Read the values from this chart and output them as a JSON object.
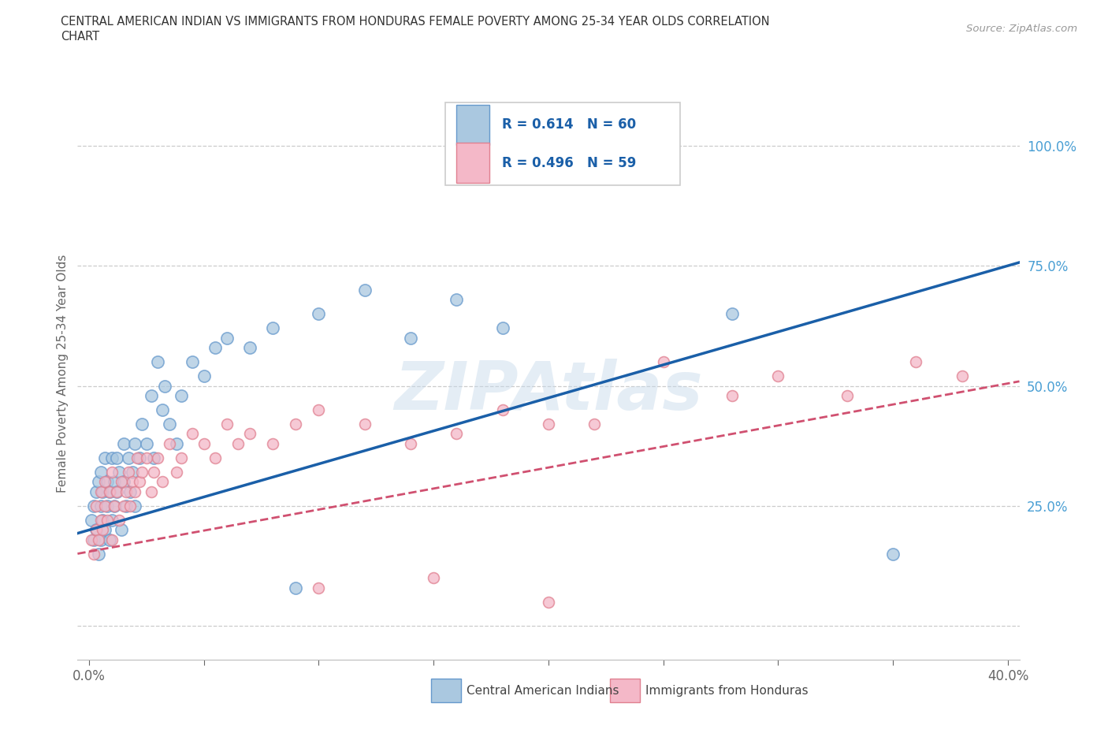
{
  "title_line1": "CENTRAL AMERICAN INDIAN VS IMMIGRANTS FROM HONDURAS FEMALE POVERTY AMONG 25-34 YEAR OLDS CORRELATION",
  "title_line2": "CHART",
  "source": "Source: ZipAtlas.com",
  "ylabel": "Female Poverty Among 25-34 Year Olds",
  "blue_face_color": "#aac8e0",
  "blue_edge_color": "#6699cc",
  "pink_face_color": "#f4b8c8",
  "pink_edge_color": "#e08090",
  "blue_line_color": "#1a5fa8",
  "pink_line_color": "#d05070",
  "R_blue": 0.614,
  "N_blue": 60,
  "R_pink": 0.496,
  "N_pink": 59,
  "watermark": "ZIPAtlas",
  "legend_label_blue": "Central American Indians",
  "legend_label_pink": "Immigrants from Honduras",
  "y_label_color": "#4a9fd4",
  "tick_label_color": "#666666",
  "grid_color": "#cccccc",
  "title_color": "#333333",
  "blue_scatter_x": [
    0.001,
    0.002,
    0.002,
    0.003,
    0.003,
    0.004,
    0.004,
    0.005,
    0.005,
    0.005,
    0.006,
    0.006,
    0.007,
    0.007,
    0.008,
    0.008,
    0.009,
    0.009,
    0.01,
    0.01,
    0.011,
    0.011,
    0.012,
    0.012,
    0.013,
    0.014,
    0.015,
    0.015,
    0.016,
    0.017,
    0.018,
    0.019,
    0.02,
    0.02,
    0.022,
    0.023,
    0.025,
    0.027,
    0.028,
    0.03,
    0.032,
    0.033,
    0.035,
    0.038,
    0.04,
    0.045,
    0.05,
    0.055,
    0.06,
    0.07,
    0.08,
    0.09,
    0.1,
    0.12,
    0.14,
    0.16,
    0.18,
    0.22,
    0.28,
    0.35
  ],
  "blue_scatter_y": [
    0.22,
    0.18,
    0.25,
    0.2,
    0.28,
    0.15,
    0.3,
    0.18,
    0.25,
    0.32,
    0.22,
    0.28,
    0.2,
    0.35,
    0.25,
    0.3,
    0.18,
    0.28,
    0.22,
    0.35,
    0.3,
    0.25,
    0.35,
    0.28,
    0.32,
    0.2,
    0.38,
    0.3,
    0.25,
    0.35,
    0.28,
    0.32,
    0.38,
    0.25,
    0.35,
    0.42,
    0.38,
    0.48,
    0.35,
    0.55,
    0.45,
    0.5,
    0.42,
    0.38,
    0.48,
    0.55,
    0.52,
    0.58,
    0.6,
    0.58,
    0.62,
    0.08,
    0.65,
    0.7,
    0.6,
    0.68,
    0.62,
    0.96,
    0.65,
    0.15
  ],
  "pink_scatter_x": [
    0.001,
    0.002,
    0.003,
    0.003,
    0.004,
    0.005,
    0.005,
    0.006,
    0.007,
    0.007,
    0.008,
    0.009,
    0.01,
    0.01,
    0.011,
    0.012,
    0.013,
    0.014,
    0.015,
    0.016,
    0.017,
    0.018,
    0.019,
    0.02,
    0.021,
    0.022,
    0.023,
    0.025,
    0.027,
    0.028,
    0.03,
    0.032,
    0.035,
    0.038,
    0.04,
    0.045,
    0.05,
    0.055,
    0.06,
    0.065,
    0.07,
    0.08,
    0.09,
    0.1,
    0.12,
    0.14,
    0.16,
    0.18,
    0.2,
    0.22,
    0.25,
    0.28,
    0.3,
    0.33,
    0.36,
    0.38,
    0.1,
    0.15,
    0.2
  ],
  "pink_scatter_y": [
    0.18,
    0.15,
    0.2,
    0.25,
    0.18,
    0.22,
    0.28,
    0.2,
    0.25,
    0.3,
    0.22,
    0.28,
    0.18,
    0.32,
    0.25,
    0.28,
    0.22,
    0.3,
    0.25,
    0.28,
    0.32,
    0.25,
    0.3,
    0.28,
    0.35,
    0.3,
    0.32,
    0.35,
    0.28,
    0.32,
    0.35,
    0.3,
    0.38,
    0.32,
    0.35,
    0.4,
    0.38,
    0.35,
    0.42,
    0.38,
    0.4,
    0.38,
    0.42,
    0.45,
    0.42,
    0.38,
    0.4,
    0.45,
    0.42,
    0.42,
    0.55,
    0.48,
    0.52,
    0.48,
    0.55,
    0.52,
    0.08,
    0.1,
    0.05
  ]
}
